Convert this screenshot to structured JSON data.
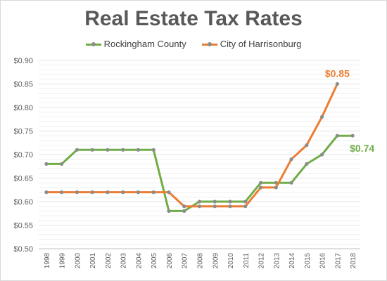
{
  "colors": {
    "rockingham": "#70ad47",
    "harrisonburg": "#ed7d31",
    "marker": "#8c8c8c",
    "grid": "#e3e3e3",
    "axis_text": "#595959"
  },
  "chart_data": {
    "type": "line",
    "title": "Real Estate Tax Rates",
    "xlabel": "",
    "ylabel": "",
    "categories": [
      "1998",
      "1999",
      "2000",
      "2001",
      "2002",
      "2003",
      "2004",
      "2005",
      "2006",
      "2007",
      "2008",
      "2009",
      "2010",
      "2011",
      "2012",
      "2013",
      "2014",
      "2015",
      "2016",
      "2017",
      "2018"
    ],
    "yticks": [
      "$0.50",
      "$0.55",
      "$0.60",
      "$0.65",
      "$0.70",
      "$0.75",
      "$0.80",
      "$0.85",
      "$0.90"
    ],
    "ylim": [
      0.5,
      0.9
    ],
    "grid": true,
    "legend_position": "top",
    "series": [
      {
        "name": "Rockingham County",
        "color_key": "rockingham",
        "values": [
          0.68,
          0.68,
          0.71,
          0.71,
          0.71,
          0.71,
          0.71,
          0.71,
          0.58,
          0.58,
          0.6,
          0.6,
          0.6,
          0.6,
          0.64,
          0.64,
          0.64,
          0.68,
          0.7,
          0.74,
          0.74
        ],
        "end_label": "$0.74"
      },
      {
        "name": "City of Harrisonburg",
        "color_key": "harrisonburg",
        "values": [
          0.62,
          0.62,
          0.62,
          0.62,
          0.62,
          0.62,
          0.62,
          0.62,
          0.62,
          0.59,
          0.59,
          0.59,
          0.59,
          0.59,
          0.63,
          0.63,
          0.69,
          0.72,
          0.78,
          0.85,
          null
        ],
        "end_label": "$0.85"
      }
    ]
  }
}
